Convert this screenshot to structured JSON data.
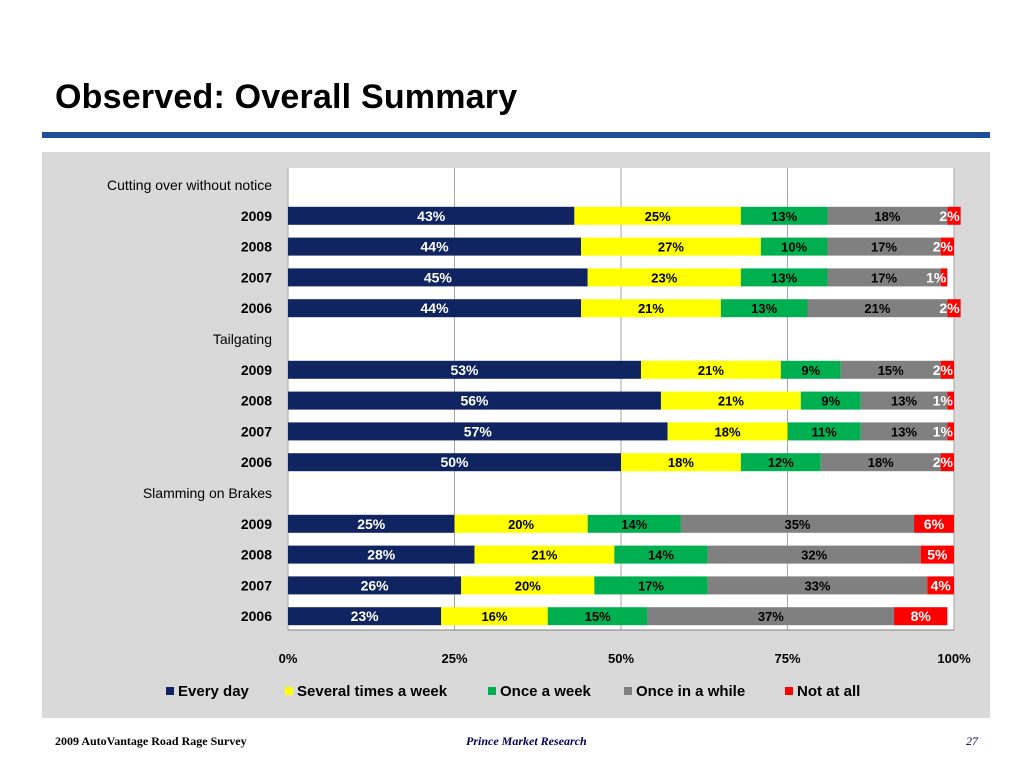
{
  "slide": {
    "title": "Observed: Overall Summary"
  },
  "footer": {
    "left": "2009 AutoVantage Road Rage Survey",
    "center": "Prince Market Research",
    "page": "27"
  },
  "colors": {
    "title_rule": "#1f4e9c",
    "panel_background": "#d9d9d9"
  },
  "chart_data": {
    "type": "bar",
    "orientation": "horizontal",
    "stacked": true,
    "xlim": [
      0,
      100
    ],
    "x_ticks": [
      "0%",
      "25%",
      "50%",
      "75%",
      "100%"
    ],
    "grid": true,
    "legend_position": "bottom",
    "series": [
      {
        "name": "Every day",
        "color": "#0f2460",
        "label_color": "#ffffff"
      },
      {
        "name": "Several times a week",
        "color": "#ffff00",
        "label_color": "#000000"
      },
      {
        "name": "Once a week",
        "color": "#00b050",
        "label_color": "#000000"
      },
      {
        "name": "Once in a while",
        "color": "#808080",
        "label_color": "#000000"
      },
      {
        "name": "Not at all",
        "color": "#ff0000",
        "label_color": "#ffffff"
      }
    ],
    "groups": [
      {
        "label": "Cutting over without notice",
        "rows": [
          {
            "year": "2009",
            "values": [
              43,
              25,
              13,
              18,
              2
            ]
          },
          {
            "year": "2008",
            "values": [
              44,
              27,
              10,
              17,
              2
            ]
          },
          {
            "year": "2007",
            "values": [
              45,
              23,
              13,
              17,
              1
            ]
          },
          {
            "year": "2006",
            "values": [
              44,
              21,
              13,
              21,
              2
            ]
          }
        ]
      },
      {
        "label": "Tailgating",
        "rows": [
          {
            "year": "2009",
            "values": [
              53,
              21,
              9,
              15,
              2
            ]
          },
          {
            "year": "2008",
            "values": [
              56,
              21,
              9,
              13,
              1
            ]
          },
          {
            "year": "2007",
            "values": [
              57,
              18,
              11,
              13,
              1
            ]
          },
          {
            "year": "2006",
            "values": [
              50,
              18,
              12,
              18,
              2
            ]
          }
        ]
      },
      {
        "label": "Slamming on Brakes",
        "rows": [
          {
            "year": "2009",
            "values": [
              25,
              20,
              14,
              35,
              6
            ]
          },
          {
            "year": "2008",
            "values": [
              28,
              21,
              14,
              32,
              5
            ]
          },
          {
            "year": "2007",
            "values": [
              26,
              20,
              17,
              33,
              4
            ]
          },
          {
            "year": "2006",
            "values": [
              23,
              16,
              15,
              37,
              8
            ]
          }
        ]
      }
    ]
  }
}
